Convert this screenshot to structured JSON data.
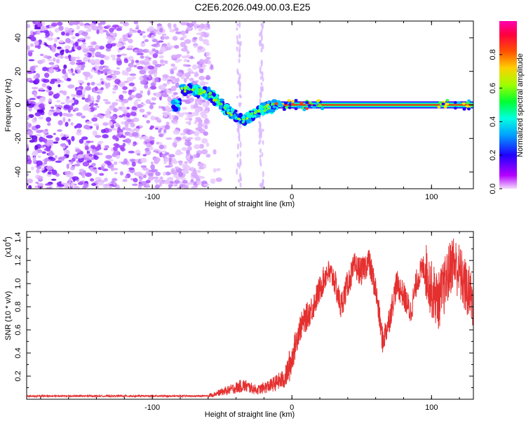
{
  "title": "C2E6.2026.049.00.03.E25",
  "chart_data": [
    {
      "type": "heatmap",
      "xlabel": "Height of straight line (km)",
      "ylabel": "Frequency (Hz)",
      "xlim": [
        -190,
        130
      ],
      "ylim": [
        -50,
        50
      ],
      "xticks": [
        -100,
        0,
        100
      ],
      "xtick_labels": [
        "-100",
        "0",
        "100"
      ],
      "yticks": [
        -40,
        -20,
        0,
        20,
        40
      ],
      "ytick_labels": [
        "-40",
        "-20",
        "0",
        "20",
        "40"
      ],
      "colorbar": {
        "label": "Normalized spectral amplitude",
        "range": [
          0,
          1
        ],
        "ticks": [
          0.0,
          0.2,
          0.4,
          0.6,
          0.8
        ],
        "tick_labels": [
          "0.0",
          "0.2",
          "0.4",
          "0.6",
          "0.8"
        ],
        "colors": [
          "#f0d0ff",
          "#a000ff",
          "#0000ff",
          "#00e0ff",
          "#00ff00",
          "#ffff00",
          "#ff8000",
          "#ff0000",
          "#ff00a0"
        ]
      },
      "ridge": {
        "description_points": [
          {
            "x": -80,
            "y": 10
          },
          {
            "x": -60,
            "y": 7
          },
          {
            "x": -45,
            "y": -4
          },
          {
            "x": -35,
            "y": -9
          },
          {
            "x": -20,
            "y": -2
          },
          {
            "x": -10,
            "y": 0
          },
          {
            "x": 0,
            "y": 0
          },
          {
            "x": 130,
            "y": 0
          }
        ],
        "constant_line_x_range": [
          -10,
          130
        ],
        "constant_line_y": 0
      },
      "noise_region_x_range": [
        -190,
        -60
      ],
      "noise_stripes_x": [
        -38,
        -22
      ]
    },
    {
      "type": "line",
      "xlabel": "Height of straight line (km)",
      "ylabel": "SNR (10 * v/v)",
      "multiplier": "(x10",
      "multiplier_exp": "4",
      "multiplier_close": ")",
      "xlim": [
        -190,
        130
      ],
      "ylim": [
        0,
        1.45
      ],
      "xticks": [
        -100,
        0,
        100
      ],
      "xtick_labels": [
        "-100",
        "0",
        "100"
      ],
      "yticks": [
        0.2,
        0.4,
        0.6,
        0.8,
        1.0,
        1.2,
        1.4
      ],
      "ytick_labels": [
        "0.2",
        "0.4",
        "0.6",
        "0.8",
        "1.0",
        "1.2",
        "1.4"
      ],
      "color": "#e53030",
      "envelope": {
        "x": [
          -190,
          -60,
          -45,
          -35,
          -25,
          -15,
          -5,
          0,
          5,
          10,
          15,
          20,
          25,
          30,
          35,
          40,
          45,
          50,
          55,
          60,
          65,
          70,
          75,
          80,
          85,
          90,
          95,
          100,
          105,
          110,
          115,
          120,
          125,
          130
        ],
        "values": [
          0.02,
          0.03,
          0.08,
          0.12,
          0.08,
          0.12,
          0.18,
          0.35,
          0.6,
          0.7,
          0.8,
          0.95,
          1.1,
          1.05,
          0.8,
          1.0,
          1.15,
          1.1,
          1.2,
          0.95,
          0.5,
          0.7,
          1.0,
          0.9,
          0.75,
          1.05,
          1.15,
          0.95,
          0.85,
          1.0,
          1.2,
          1.1,
          0.95,
          0.85
        ]
      }
    }
  ]
}
